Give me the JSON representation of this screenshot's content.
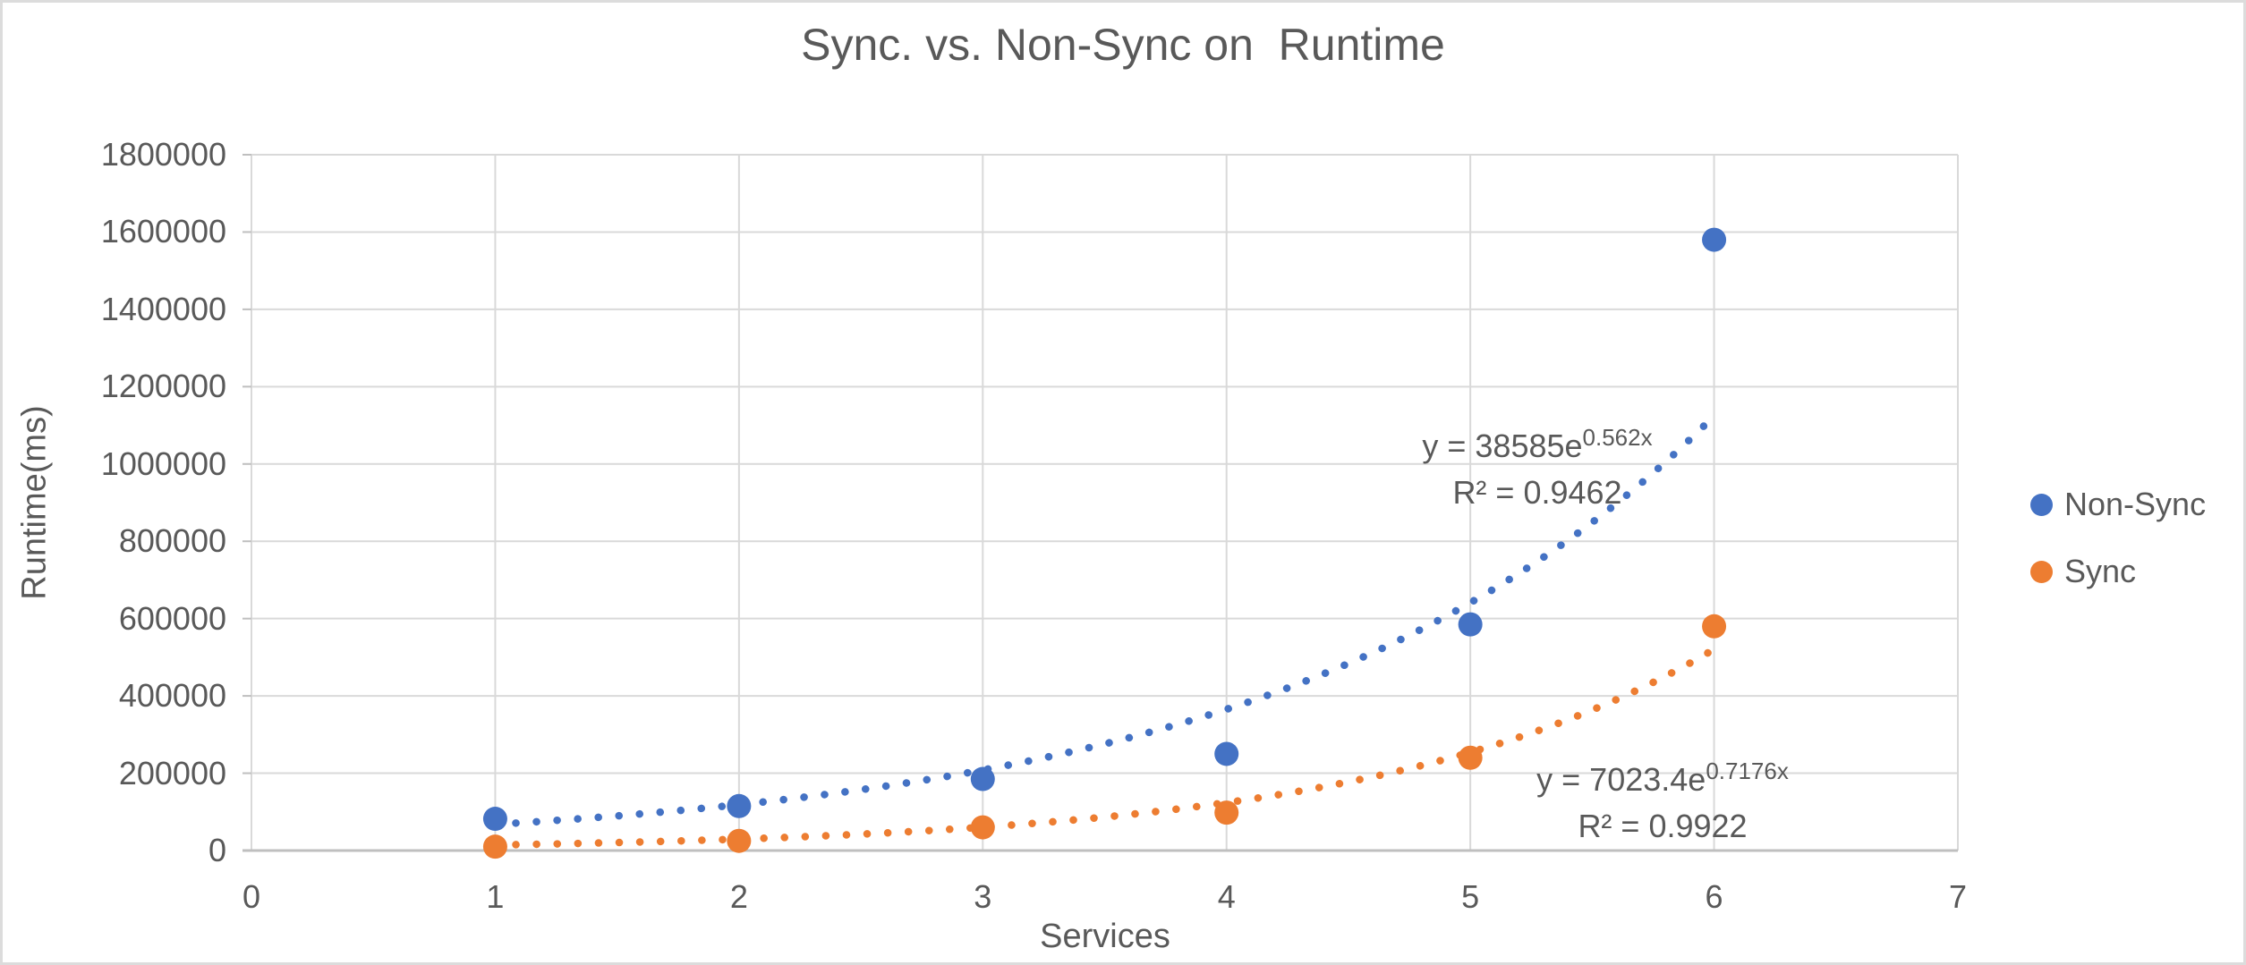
{
  "title": "Sync. vs. Non-Sync on  Runtime",
  "chart_data": {
    "type": "scatter",
    "title": "Sync. vs. Non-Sync on  Runtime",
    "xlabel": "Services",
    "ylabel": "Runtime(ms)",
    "xlim": [
      0,
      7
    ],
    "ylim": [
      0,
      1800000
    ],
    "x_ticks": [
      "0",
      "1",
      "2",
      "3",
      "4",
      "5",
      "6",
      "7"
    ],
    "y_ticks": [
      "0",
      "200000",
      "400000",
      "600000",
      "800000",
      "1000000",
      "1200000",
      "1400000",
      "1600000",
      "1800000"
    ],
    "grid": true,
    "legend_position": "right",
    "x": [
      1,
      2,
      3,
      4,
      5,
      6
    ],
    "series": [
      {
        "name": "Non-Sync",
        "color": "#4472C4",
        "values": [
          82000,
          115000,
          185000,
          250000,
          585000,
          1580000
        ],
        "trendline": {
          "type": "exponential",
          "a": 38585,
          "b": 0.562,
          "r2": 0.9462,
          "equation_base": "y = 38585e",
          "equation_exponent": "0.562x",
          "r2_label": "R² = 0.9462"
        }
      },
      {
        "name": "Sync",
        "color": "#ED7D31",
        "values": [
          10000,
          25000,
          60000,
          98000,
          240000,
          580000
        ],
        "trendline": {
          "type": "exponential",
          "a": 7023.4,
          "b": 0.7176,
          "r2": 0.9922,
          "equation_base": "y = 7023.4e",
          "equation_exponent": "0.7176x",
          "r2_label": "R² = 0.9922"
        }
      }
    ]
  },
  "legend": {
    "items": [
      {
        "label": "Non-Sync",
        "color": "#4472C4"
      },
      {
        "label": "Sync",
        "color": "#ED7D31"
      }
    ]
  },
  "colors": {
    "non_sync": "#4472C4",
    "sync": "#ED7D31",
    "gridline": "#D9D9D9",
    "axis_line": "#BFBFBF",
    "text": "#595959"
  }
}
